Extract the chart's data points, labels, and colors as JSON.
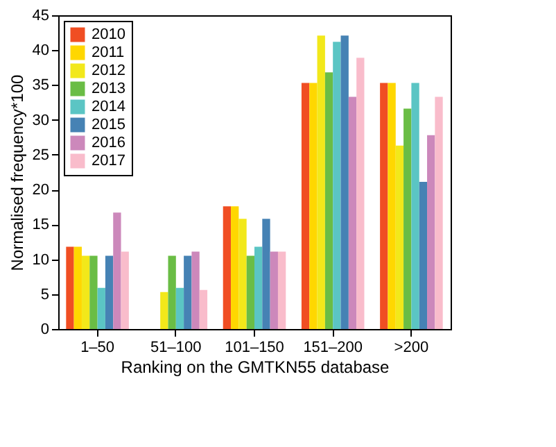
{
  "chart_data": {
    "type": "bar",
    "xlabel": "Ranking on the GMTKN55 database",
    "ylabel": "Normalised frequency*100",
    "categories": [
      "1–50",
      "51–100",
      "101–150",
      "151–200",
      ">200"
    ],
    "series": [
      {
        "name": "2010",
        "color": "#f04e23",
        "values": [
          11.8,
          0,
          17.6,
          35.3,
          35.3
        ]
      },
      {
        "name": "2011",
        "color": "#ffd700",
        "values": [
          11.8,
          0,
          17.6,
          35.3,
          35.3
        ]
      },
      {
        "name": "2012",
        "color": "#f2e81a",
        "values": [
          10.5,
          5.3,
          15.8,
          42.1,
          26.3
        ]
      },
      {
        "name": "2013",
        "color": "#6abd45",
        "values": [
          10.5,
          10.5,
          10.5,
          36.8,
          31.6
        ]
      },
      {
        "name": "2014",
        "color": "#5bc5c4",
        "values": [
          5.9,
          5.9,
          11.8,
          41.2,
          35.3
        ]
      },
      {
        "name": "2015",
        "color": "#4682b4",
        "values": [
          10.5,
          10.5,
          15.8,
          42.1,
          21.1
        ]
      },
      {
        "name": "2016",
        "color": "#cc88bb",
        "values": [
          16.7,
          11.1,
          11.1,
          33.3,
          27.8
        ]
      },
      {
        "name": "2017",
        "color": "#f9bccb",
        "values": [
          11.1,
          5.6,
          11.1,
          38.9,
          33.3
        ]
      }
    ],
    "ylim": [
      0,
      45
    ],
    "yticks": [
      0,
      5,
      10,
      15,
      20,
      25,
      30,
      35,
      40,
      45
    ],
    "grid": false,
    "legend": "top left"
  }
}
